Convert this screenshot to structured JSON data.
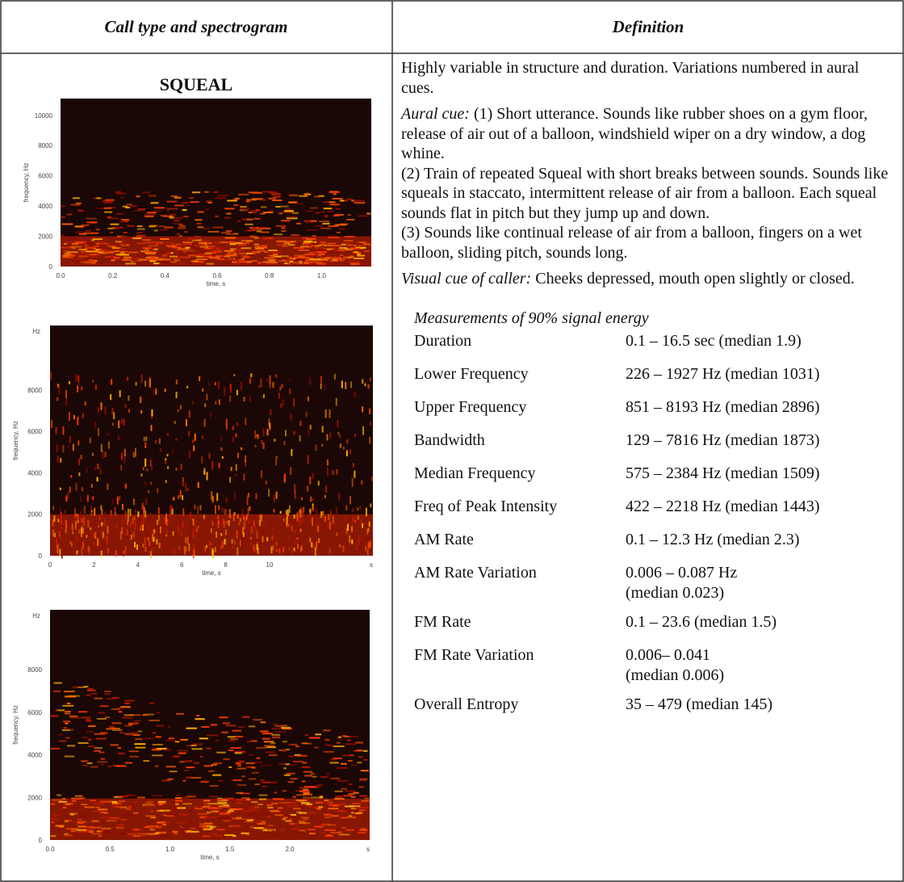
{
  "table": {
    "headers": [
      "Call type and spectrogram",
      "Definition"
    ],
    "call_type": "SQUEAL",
    "spectrograms": [
      {
        "y_label": "frequency, Hz",
        "x_label": "time, s",
        "y_ticks": [
          "10000",
          "8000",
          "6000",
          "4000",
          "2000",
          "0"
        ],
        "x_ticks": [
          "0.0",
          "0.2",
          "0.4",
          "0.6",
          "0.8",
          "1.0"
        ]
      },
      {
        "y_unit": "Hz",
        "y_label": "frequency, Hz",
        "x_label": "time, s",
        "x_unit": "s",
        "y_ticks": [
          "8000",
          "6000",
          "4000",
          "2000",
          "0"
        ],
        "x_ticks": [
          "0",
          "2",
          "4",
          "6",
          "8",
          "10"
        ]
      },
      {
        "y_unit": "Hz",
        "y_label": "frequency, Hz",
        "x_label": "time, s",
        "x_unit": "s",
        "y_ticks": [
          "8000",
          "6000",
          "4000",
          "2000",
          "0"
        ],
        "x_ticks": [
          "0.0",
          "0.5",
          "1.0",
          "1.5",
          "2.0"
        ]
      }
    ],
    "definition": {
      "intro": "Highly variable in structure and duration. Variations numbered in aural cues.",
      "aural_cue_label": "Aural cue:",
      "aural_cue": [
        "(1) Short utterance. Sounds like rubber shoes on a gym floor, release of air out of a balloon, windshield wiper on a dry window, a dog whine.",
        "(2) Train of repeated Squeal with short breaks between sounds. Sounds like squeals in staccato, intermittent release of air from a balloon. Each squeal sounds flat in pitch but they jump up and down.",
        "(3) Sounds like continual release of air from a balloon, fingers on a wet balloon, sliding pitch, sounds long."
      ],
      "visual_cue_label": "Visual cue of caller:",
      "visual_cue": "Cheeks depressed, mouth open slightly or closed.",
      "measurements_title": "Measurements of 90% signal energy",
      "measurements": [
        {
          "name": "Duration",
          "value": [
            "0.1 – 16.5 sec (median 1.9)"
          ]
        },
        {
          "name": "Lower Frequency",
          "value": [
            "226 – 1927 Hz (median 1031)"
          ]
        },
        {
          "name": "Upper Frequency",
          "value": [
            "851 – 8193 Hz (median 2896)"
          ]
        },
        {
          "name": "Bandwidth",
          "value": [
            "129 – 7816 Hz (median 1873)"
          ]
        },
        {
          "name": "Median Frequency",
          "value": [
            "575 – 2384 Hz (median 1509)"
          ]
        },
        {
          "name": "Freq of Peak Intensity",
          "value": [
            "422 – 2218 Hz (median 1443)"
          ]
        },
        {
          "name": "AM Rate",
          "value": [
            "0.1 – 12.3 Hz (median 2.3)"
          ]
        },
        {
          "name": "AM Rate Variation",
          "value": [
            "0.006 – 0.087 Hz",
            "(median 0.023)"
          ]
        },
        {
          "name": "FM Rate",
          "value": [
            "0.1 – 23.6 (median 1.5)"
          ]
        },
        {
          "name": "FM Rate Variation",
          "value": [
            "0.006– 0.041",
            "(median 0.006)"
          ]
        },
        {
          "name": "Overall Entropy",
          "value": [
            "35 – 479 (median 145)"
          ]
        }
      ]
    }
  }
}
